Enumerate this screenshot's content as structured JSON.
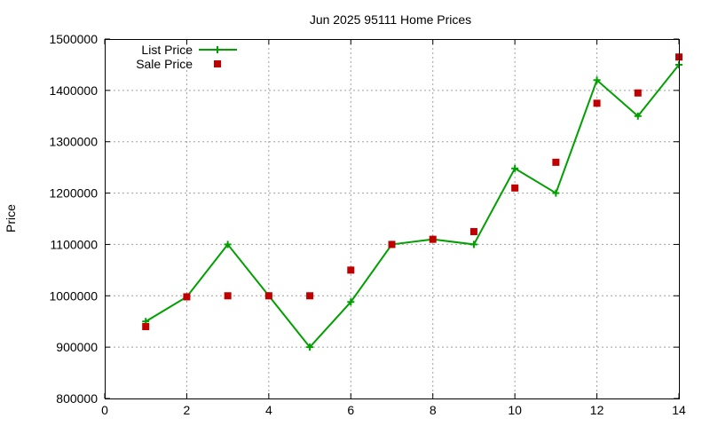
{
  "chart_data": {
    "type": "line",
    "title": "Jun 2025 95111 Home Prices",
    "xlabel": "",
    "ylabel": "Price",
    "xlim": [
      0,
      14
    ],
    "ylim": [
      800000,
      1500000
    ],
    "xticks": [
      "0",
      "2",
      "4",
      "6",
      "8",
      "10",
      "12",
      "14"
    ],
    "yticks": [
      "800000",
      "900000",
      "1000000",
      "1100000",
      "1200000",
      "1300000",
      "1400000",
      "1500000"
    ],
    "grid": true,
    "legend_position": "top-left",
    "series": [
      {
        "name": "List Price",
        "style": "line-with-plus-markers",
        "color": "#00a000",
        "x": [
          1,
          2,
          3,
          4,
          5,
          6,
          7,
          8,
          9,
          10,
          11,
          12,
          13,
          14
        ],
        "y": [
          950000,
          998000,
          1100000,
          1000000,
          900000,
          988000,
          1100000,
          1110000,
          1100000,
          1248000,
          1200000,
          1420000,
          1350000,
          1450000
        ]
      },
      {
        "name": "Sale Price",
        "style": "square-markers",
        "color": "#c00000",
        "x": [
          1,
          2,
          3,
          4,
          5,
          6,
          7,
          8,
          9,
          10,
          11,
          12,
          13,
          14
        ],
        "y": [
          940000,
          998000,
          1000000,
          1000000,
          1000000,
          1050000,
          1100000,
          1110000,
          1125000,
          1210000,
          1260000,
          1375000,
          1395000,
          1465000
        ]
      }
    ]
  }
}
